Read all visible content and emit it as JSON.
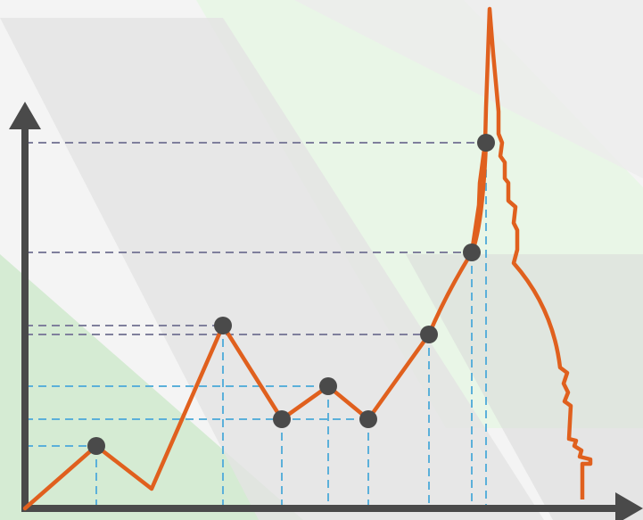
{
  "illustration": {
    "style": "infographic line chart with cathedral spire silhouette",
    "colors": {
      "line": "#e0601e",
      "axis": "#4a4a4a",
      "points": "#4a4a4a",
      "guide_gray": "#7f7f9c",
      "guide_blue": "#5bb0da",
      "bg_light": "#f4f4f4",
      "bg_green": "#cdebcb",
      "bg_gray": "#dcdcdc"
    },
    "icons": [
      "arrow-up-icon",
      "arrow-right-icon"
    ],
    "chart_data": {
      "type": "line",
      "title": "",
      "xlabel": "",
      "ylabel": "",
      "grid": false,
      "points_marked": 9,
      "series": [
        {
          "name": "",
          "values": [
            0,
            2,
            1,
            5,
            3,
            4,
            3,
            5,
            8,
            12
          ]
        }
      ]
    }
  }
}
